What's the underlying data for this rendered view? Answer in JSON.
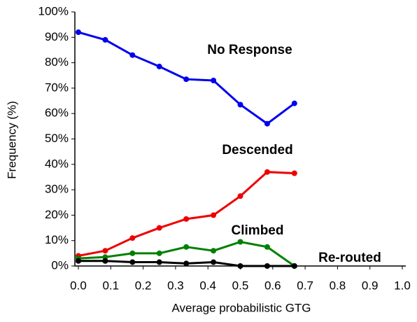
{
  "chart_data": {
    "type": "line",
    "x_label": "Average probabilistic GTG",
    "y_label": "Frequency (%)",
    "x": [
      0,
      0.083,
      0.167,
      0.25,
      0.333,
      0.417,
      0.5,
      0.583,
      0.667
    ],
    "series": [
      {
        "name": "No Response",
        "color": "#0000ee",
        "values": [
          92,
          89,
          83,
          78.5,
          73.5,
          73,
          63.5,
          56,
          64
        ]
      },
      {
        "name": "Descended",
        "color": "#ee0000",
        "values": [
          4,
          6,
          11,
          15,
          18.5,
          20,
          27.5,
          37,
          36.5
        ]
      },
      {
        "name": "Climbed",
        "color": "#008000",
        "values": [
          3,
          3.5,
          5,
          5,
          7.5,
          6,
          9.5,
          7.5,
          0
        ]
      },
      {
        "name": "Re-routed",
        "color": "#000000",
        "values": [
          2,
          2,
          1.5,
          1.5,
          1,
          1.5,
          0,
          0,
          0
        ]
      }
    ],
    "xlim": [
      0,
      1
    ],
    "xticks": [
      {
        "value": 0,
        "label": "0.0"
      },
      0.1,
      0.2,
      0.3,
      0.4,
      0.5,
      0.6,
      0.7,
      0.8,
      0.9,
      {
        "value": 1,
        "label": "1.0"
      }
    ],
    "ylim": [
      0,
      100
    ],
    "yticks": [
      {
        "value": 0,
        "label": "0%"
      },
      {
        "value": 10,
        "label": "10%"
      },
      {
        "value": 20,
        "label": "20%"
      },
      {
        "value": 30,
        "label": "30%"
      },
      {
        "value": 40,
        "label": "40%"
      },
      {
        "value": 50,
        "label": "50%"
      },
      {
        "value": 60,
        "label": "60%"
      },
      {
        "value": 70,
        "label": "70%"
      },
      {
        "value": 80,
        "label": "80%"
      },
      {
        "value": 90,
        "label": "90%"
      },
      {
        "value": 100,
        "label": "100%"
      }
    ],
    "grid": false
  }
}
